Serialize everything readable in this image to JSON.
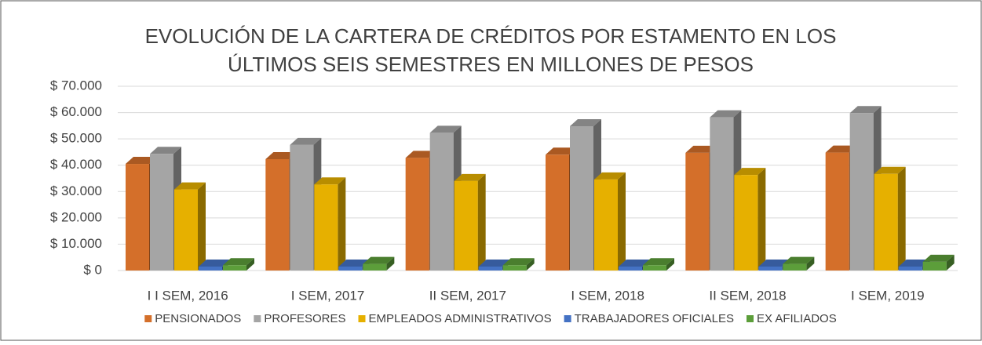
{
  "chart_data": {
    "type": "bar3d",
    "title": [
      "EVOLUCIÓN DE LA CARTERA DE CRÉDITOS POR ESTAMENTO EN LOS",
      "ÚLTIMOS SEIS SEMESTRES EN MILLONES DE PESOS"
    ],
    "categories": [
      "I I SEM, 2016",
      "I SEM, 2017",
      "II SEM, 2017",
      "I SEM, 2018",
      "II SEM, 2018",
      "I SEM, 2019"
    ],
    "series": [
      {
        "name": "PENSIONADOS",
        "color": "#d46f2a",
        "values": [
          40500,
          42300,
          42800,
          44000,
          44700,
          44800
        ]
      },
      {
        "name": "PROFESORES",
        "color": "#a5a5a5",
        "values": [
          44300,
          47700,
          52300,
          54800,
          58200,
          59800
        ]
      },
      {
        "name": "EMPLEADOS ADMINISTRATIVOS",
        "color": "#e6b000",
        "values": [
          30800,
          32700,
          34000,
          34600,
          36300,
          36700
        ]
      },
      {
        "name": "TRABAJADORES OFICIALES",
        "color": "#4472c4",
        "values": [
          1500,
          1500,
          1500,
          1500,
          1500,
          1500
        ]
      },
      {
        "name": "EX AFILIADOS",
        "color": "#5c9e3a",
        "values": [
          2000,
          2500,
          2000,
          2000,
          2500,
          3300
        ]
      }
    ],
    "ylim": [
      0,
      70000
    ],
    "yticks": [
      {
        "value": 0,
        "label": "$ 0"
      },
      {
        "value": 10000,
        "label": "$ 10.000"
      },
      {
        "value": 20000,
        "label": "$ 20.000"
      },
      {
        "value": 30000,
        "label": "$ 30.000"
      },
      {
        "value": 40000,
        "label": "$ 40.000"
      },
      {
        "value": 50000,
        "label": "$ 50.000"
      },
      {
        "value": 60000,
        "label": "$ 60.000"
      },
      {
        "value": 70000,
        "label": "$ 70.000"
      }
    ],
    "grid": true,
    "legend": "bottom"
  }
}
